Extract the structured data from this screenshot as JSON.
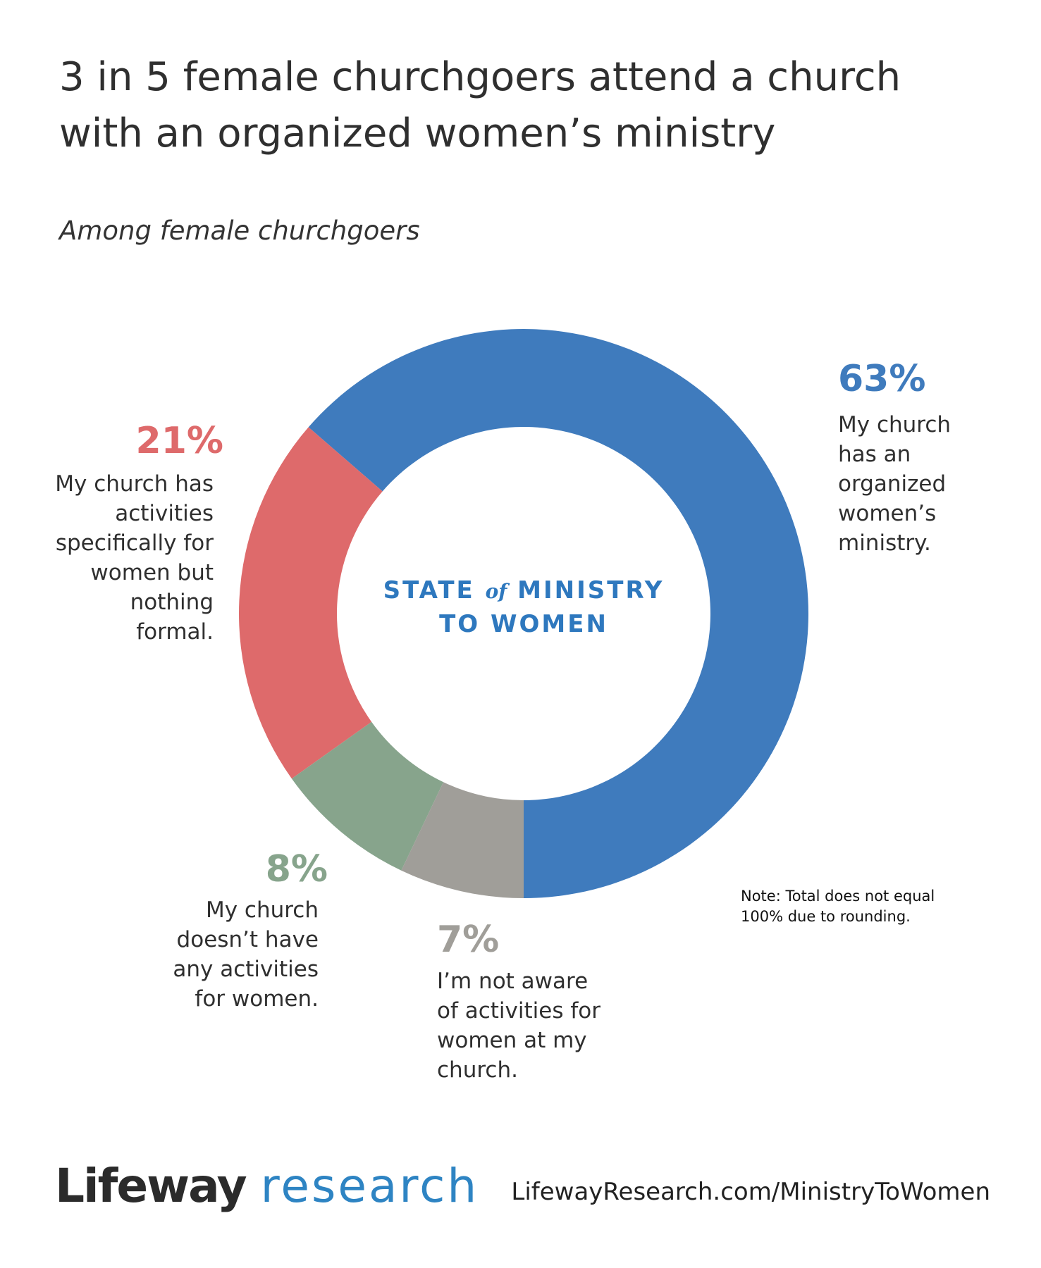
{
  "chart_data": {
    "type": "donut",
    "title": "3 in 5 female churchgoers attend a church with an organized women’s ministry",
    "subtitle": "Among female churchgoers",
    "categories": [
      "My church has an organized women’s ministry.",
      "My church has activities specifically for women but nothing formal.",
      "My church doesn’t have any activities for women.",
      "I’m not aware of activities for women at my church."
    ],
    "values": [
      63,
      21,
      8,
      7
    ],
    "value_labels": [
      "63%",
      "21%",
      "8%",
      "7%"
    ],
    "colors": [
      "#3f7bbd",
      "#de6a6b",
      "#87a48c",
      "#a09e99"
    ],
    "center_label": {
      "line1_a": "STATE",
      "line1_b": "of",
      "line1_c": "MINISTRY",
      "line2": "TO WOMEN"
    },
    "note": "Note: Total does not equal 100% due to rounding."
  },
  "footer": {
    "brand_a": "Lifeway",
    "brand_b": "research",
    "url": "LifewayResearch.com/MinistryToWomen"
  }
}
